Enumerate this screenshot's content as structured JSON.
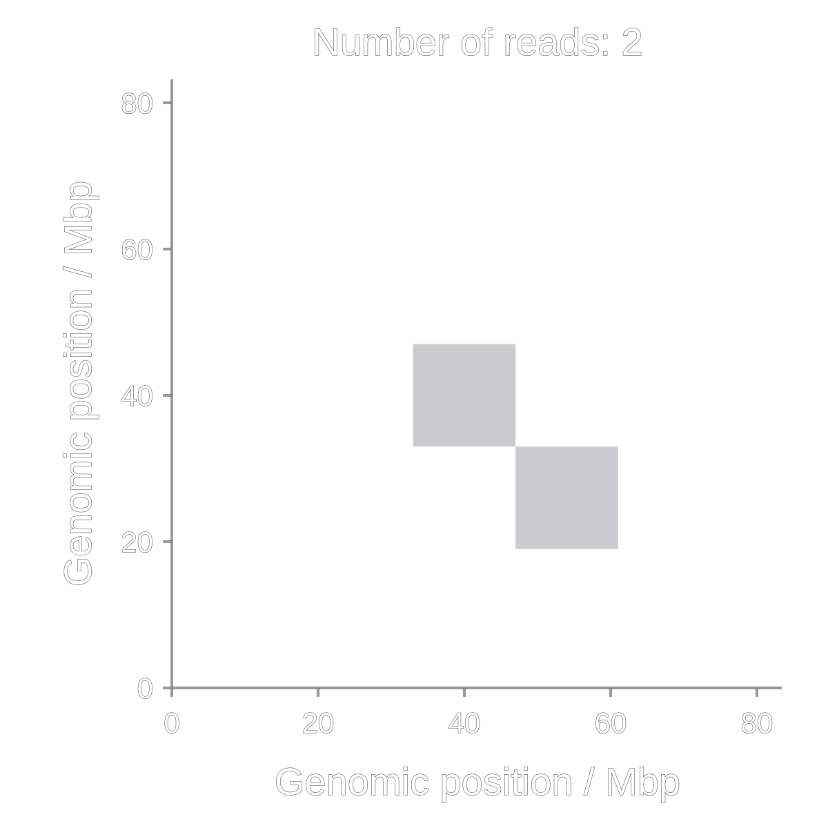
{
  "chart_data": {
    "type": "heatmap",
    "title": "Number of reads: 2",
    "xlabel": "Genomic position / Mbp",
    "ylabel": "Genomic position / Mbp",
    "xlim": [
      0,
      83
    ],
    "ylim": [
      0,
      83
    ],
    "x_ticks": [
      0,
      20,
      40,
      60,
      80
    ],
    "y_ticks": [
      0,
      20,
      40,
      60,
      80
    ],
    "x_tick_labels": [
      "0",
      "20",
      "40",
      "60",
      "80"
    ],
    "y_tick_labels": [
      "0",
      "20",
      "40",
      "60",
      "80"
    ],
    "grid": false,
    "cells": [
      {
        "x0": 33,
        "x1": 47,
        "y0": 33,
        "y1": 47,
        "color": "#cbcbcf"
      },
      {
        "x0": 47,
        "x1": 61,
        "y0": 19,
        "y1": 33,
        "color": "#cbcbcf"
      }
    ]
  }
}
